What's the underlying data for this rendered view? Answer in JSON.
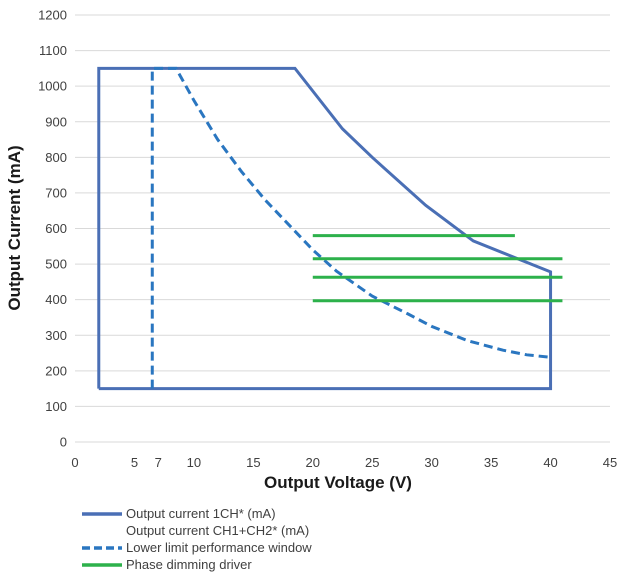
{
  "chart_data": {
    "type": "line",
    "xlabel": "Output Voltage (V)",
    "ylabel": "Output Current (mA)",
    "xlim": [
      0,
      45
    ],
    "ylim": [
      0,
      1200
    ],
    "x_ticks": [
      0,
      5,
      7,
      10,
      15,
      20,
      25,
      30,
      35,
      40,
      45
    ],
    "y_ticks": [
      0,
      100,
      200,
      300,
      400,
      500,
      600,
      700,
      800,
      900,
      1000,
      1100,
      1200
    ],
    "grid": "horizontal",
    "legend_position": "bottom-left",
    "series": [
      {
        "name": "Output current 1CH* (mA)",
        "secondary_name": "Output current CH1+CH2* (mA)",
        "style": "solid",
        "color": "#4a6fb5",
        "x": [
          2,
          2,
          18.5,
          22.5,
          25,
          29.5,
          33.5,
          40,
          40,
          2
        ],
        "y": [
          150,
          1050,
          1050,
          880,
          800,
          665,
          565,
          478,
          150,
          150
        ]
      },
      {
        "name": "Lower limit performance window",
        "style": "dashed",
        "color": "#2a76c0",
        "x": [
          6.5,
          6.5,
          8.5,
          10,
          12,
          14,
          16,
          18,
          20,
          22,
          25,
          28,
          30,
          33,
          36,
          38,
          40
        ],
        "y": [
          150,
          1050,
          1050,
          960,
          850,
          760,
          680,
          610,
          540,
          480,
          410,
          360,
          325,
          285,
          258,
          245,
          238
        ]
      },
      {
        "name": "Phase dimming driver",
        "style": "solid",
        "color": "#2db14b",
        "segments": [
          {
            "x": [
              20,
              37
            ],
            "y": [
              580,
              580
            ]
          },
          {
            "x": [
              20,
              41
            ],
            "y": [
              515,
              515
            ]
          },
          {
            "x": [
              20,
              41
            ],
            "y": [
              463,
              463
            ]
          },
          {
            "x": [
              20,
              41
            ],
            "y": [
              397,
              397
            ]
          }
        ]
      }
    ]
  }
}
